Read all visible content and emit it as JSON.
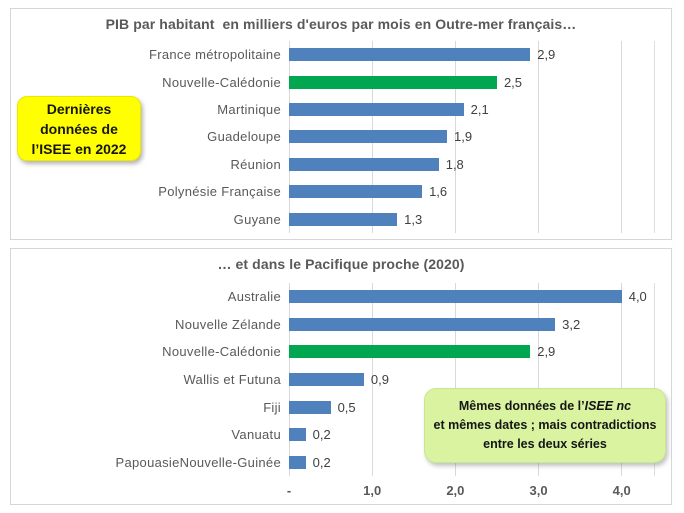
{
  "colors": {
    "bar_blue": "#4f81bd",
    "bar_green": "#00a650",
    "gridline": "#d9d9d9",
    "panel_border": "#d6d6d6",
    "title_text": "#595959",
    "category_text": "#595959",
    "value_text": "#404040",
    "axis_text": "#595959",
    "callout_yellow_bg": "#ffff00",
    "callout_green_bg": "#d9f3a1"
  },
  "chart_data": [
    {
      "type": "bar",
      "orientation": "horizontal",
      "title": "PIB par habitant  en milliers d'euros par mois en Outre-mer français…",
      "categories": [
        "France métropolitaine",
        "Nouvelle-Calédonie",
        "Martinique",
        "Guadeloupe",
        "Réunion",
        "Polynésie Française",
        "Guyane"
      ],
      "values": [
        2.9,
        2.5,
        2.1,
        1.9,
        1.8,
        1.6,
        1.3
      ],
      "value_labels": [
        "2,9",
        "2,5",
        "2,1",
        "1,9",
        "1,8",
        "1,6",
        "1,3"
      ],
      "bar_colors": [
        "#4f81bd",
        "#00a650",
        "#4f81bd",
        "#4f81bd",
        "#4f81bd",
        "#4f81bd",
        "#4f81bd"
      ],
      "xlim": [
        0,
        4.4
      ],
      "gridline_values": [
        0,
        1,
        2,
        3,
        4
      ],
      "x_ticks": [],
      "legend": "none",
      "grid": "vertical"
    },
    {
      "type": "bar",
      "orientation": "horizontal",
      "title": "… et dans le Pacifique proche (2020)",
      "categories": [
        "Australie",
        "Nouvelle Zélande",
        "Nouvelle-Calédonie",
        "Wallis et Futuna",
        "Fiji",
        "Vanuatu",
        "PapouasieNouvelle-Guinée"
      ],
      "values": [
        4.0,
        3.2,
        2.9,
        0.9,
        0.5,
        0.2,
        0.2
      ],
      "value_labels": [
        "4,0",
        "3,2",
        "2,9",
        "0,9",
        "0,5",
        "0,2",
        "0,2"
      ],
      "bar_colors": [
        "#4f81bd",
        "#4f81bd",
        "#00a650",
        "#4f81bd",
        "#4f81bd",
        "#4f81bd",
        "#4f81bd"
      ],
      "xlim": [
        0,
        4.4
      ],
      "gridline_values": [
        0,
        1,
        2,
        3,
        4
      ],
      "x_ticks": [
        {
          "value": 0,
          "label": "-"
        },
        {
          "value": 1,
          "label": "1,0"
        },
        {
          "value": 2,
          "label": "2,0"
        },
        {
          "value": 3,
          "label": "3,0"
        },
        {
          "value": 4,
          "label": "4,0"
        }
      ],
      "legend": "none",
      "grid": "vertical"
    }
  ],
  "callouts": {
    "yellow": {
      "lines": [
        "Dernières",
        "données de",
        "l’ISEE en 2022"
      ]
    },
    "green": {
      "line1_prefix": "Mêmes données de l’",
      "line1_italic": "ISEE nc",
      "line2": "et mêmes dates ; mais contradictions",
      "line3": "entre les deux séries"
    }
  }
}
